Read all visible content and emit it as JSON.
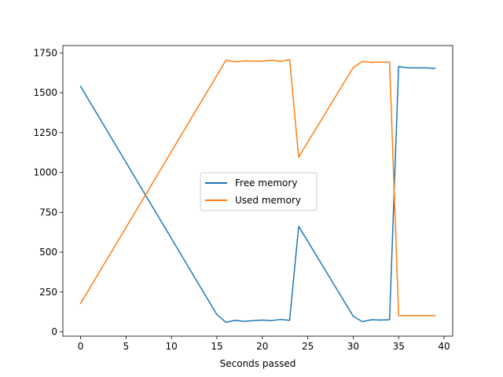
{
  "chart_data": {
    "type": "line",
    "title": "",
    "xlabel": "Seconds passed",
    "ylabel": "",
    "xlim": [
      -1.95,
      40.95
    ],
    "ylim": [
      -27,
      1796
    ],
    "xticks": [
      0,
      5,
      10,
      15,
      20,
      25,
      30,
      35,
      40
    ],
    "yticks": [
      0,
      250,
      500,
      750,
      1000,
      1250,
      1500,
      1750
    ],
    "grid": false,
    "legend_position": "center",
    "series": [
      {
        "name": "Free memory",
        "color": "#1f77b4",
        "x": [
          0,
          15,
          16,
          17,
          18,
          19,
          20,
          21,
          22,
          23,
          24,
          30,
          31,
          32,
          33,
          34,
          35,
          36,
          37,
          38,
          39
        ],
        "y": [
          1540,
          108,
          60,
          72,
          66,
          70,
          74,
          70,
          78,
          72,
          662,
          98,
          64,
          76,
          74,
          76,
          1665,
          1656,
          1656,
          1656,
          1652
        ]
      },
      {
        "name": "Used memory",
        "color": "#ff7f0e",
        "x": [
          0,
          16,
          17,
          18,
          19,
          20,
          21,
          22,
          23,
          24,
          30,
          31,
          32,
          33,
          34,
          35,
          36,
          37,
          38,
          39
        ],
        "y": [
          178,
          1704,
          1694,
          1700,
          1698,
          1698,
          1704,
          1696,
          1708,
          1096,
          1658,
          1696,
          1690,
          1692,
          1692,
          102,
          102,
          102,
          102,
          102
        ]
      }
    ]
  }
}
